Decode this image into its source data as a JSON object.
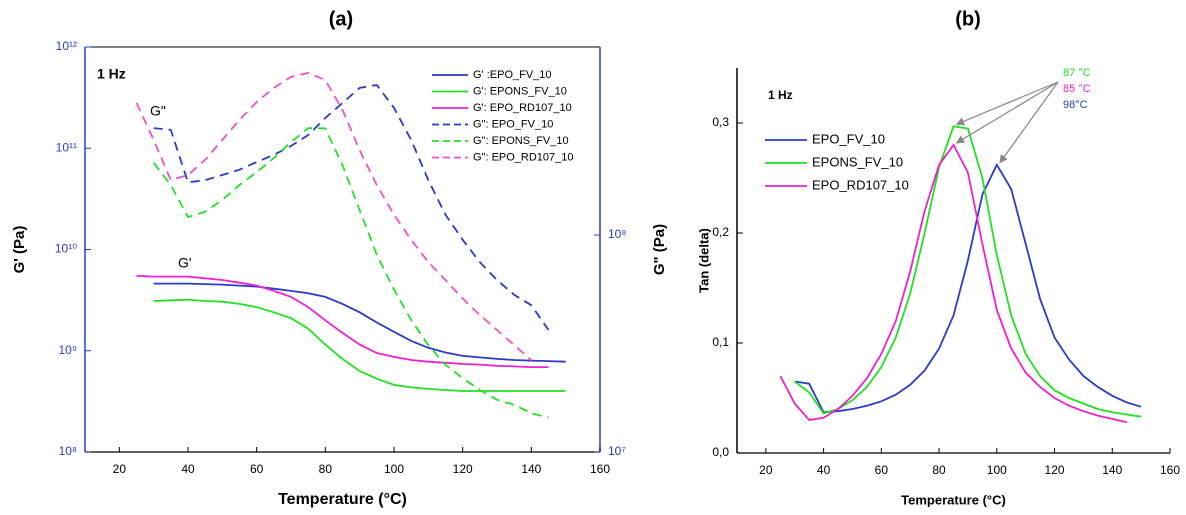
{
  "chart_data": [
    {
      "type": "line",
      "title": "(a)",
      "xlabel": "Temperature (°C)",
      "ylabel": "G' (Pa)",
      "y2label": "G\" (Pa)",
      "annotations": [
        "1 Hz",
        "G\"",
        "G'"
      ],
      "x": [
        25,
        30,
        35,
        40,
        45,
        50,
        55,
        60,
        65,
        70,
        75,
        80,
        85,
        90,
        95,
        100,
        105,
        110,
        115,
        120,
        125,
        130,
        135,
        140,
        145,
        150
      ],
      "xlim": [
        10,
        160
      ],
      "xticks": [
        20,
        40,
        60,
        80,
        100,
        120,
        140,
        160
      ],
      "ylog": true,
      "ylim": [
        100000000.0,
        1000000000000.0
      ],
      "yticks": [
        {
          "value": 100000000.0,
          "label": "10⁸"
        },
        {
          "value": 1000000000.0,
          "label": "10⁹"
        },
        {
          "value": 10000000000.0,
          "label": "10¹⁰"
        },
        {
          "value": 100000000000.0,
          "label": "10¹¹"
        },
        {
          "value": 1000000000000.0,
          "label": "10¹²"
        }
      ],
      "y2lim": [
        10000000.0,
        735000000.0
      ],
      "y2ticks": [
        {
          "value": 10000000.0,
          "label": "10⁷"
        },
        {
          "value": 100000000.0,
          "label": "10⁸"
        }
      ],
      "legend": "upper right",
      "series": [
        {
          "name": "G' :EPO_FV_10",
          "color": "#2a3bcc",
          "linestyle": "solid",
          "values": [
            null,
            4600000000.0,
            4600000000.0,
            4600000000.0,
            4550000000.0,
            4500000000.0,
            4400000000.0,
            4300000000.0,
            4100000000.0,
            3900000000.0,
            3700000000.0,
            3400000000.0,
            2900000000.0,
            2400000000.0,
            1900000000.0,
            1540000000.0,
            1250000000.0,
            1070000000.0,
            960000000.0,
            890000000.0,
            860000000.0,
            830000000.0,
            810000000.0,
            800000000.0,
            790000000.0,
            780000000.0
          ]
        },
        {
          "name": "G': EPONS_FV_10",
          "color": "#22e022",
          "linestyle": "solid",
          "values": [
            null,
            3100000000.0,
            3150000000.0,
            3200000000.0,
            3100000000.0,
            3050000000.0,
            2900000000.0,
            2700000000.0,
            2400000000.0,
            2100000000.0,
            1650000000.0,
            1150000000.0,
            830000000.0,
            630000000.0,
            530000000.0,
            460000000.0,
            435000000.0,
            420000000.0,
            410000000.0,
            400000000.0,
            400000000.0,
            400000000.0,
            400000000.0,
            400000000.0,
            400000000.0,
            400000000.0
          ]
        },
        {
          "name": "G': EPO_RD107_10",
          "color": "#f020d0",
          "linestyle": "solid",
          "values": [
            5500000000.0,
            5400000000.0,
            5400000000.0,
            5400000000.0,
            5200000000.0,
            5000000000.0,
            4700000000.0,
            4400000000.0,
            3900000000.0,
            3400000000.0,
            2700000000.0,
            2000000000.0,
            1500000000.0,
            1150000000.0,
            950000000.0,
            870000000.0,
            810000000.0,
            780000000.0,
            760000000.0,
            740000000.0,
            730000000.0,
            710000000.0,
            700000000.0,
            690000000.0,
            690000000.0,
            null
          ]
        },
        {
          "name": "G\": EPO_FV_10",
          "color": "#2a3bcc",
          "linestyle": "dashed",
          "axis": "y2",
          "values": [
            null,
            311000000.0,
            305000000.0,
            175000000.0,
            179000000.0,
            189000000.0,
            200000000.0,
            217000000.0,
            234000000.0,
            257000000.0,
            289000000.0,
            346000000.0,
            406000000.0,
            476000000.0,
            491000000.0,
            385000000.0,
            274000000.0,
            179000000.0,
            124000000.0,
            95000000.0,
            75000000.0,
            62000000.0,
            53000000.0,
            47500000.0,
            36500000.0,
            null
          ]
        },
        {
          "name": "G\": EPONS_FV_10",
          "color": "#22e022",
          "linestyle": "dashed",
          "axis": "y2",
          "values": [
            null,
            215000000.0,
            170000000.0,
            121000000.0,
            128000000.0,
            145000000.0,
            170000000.0,
            195000000.0,
            226000000.0,
            268000000.0,
            311000000.0,
            310000000.0,
            210000000.0,
            130000000.0,
            81000000.0,
            56000000.0,
            40600000.0,
            31100000.0,
            25200000.0,
            21900000.0,
            19300000.0,
            17400000.0,
            16500000.0,
            15100000.0,
            14400000.0,
            null
          ]
        },
        {
          "name": "G\": EPO_RD107_10",
          "color": "#f050c8",
          "linestyle": "dashed",
          "axis": "y2",
          "values": [
            406000000.0,
            274000000.0,
            179000000.0,
            189000000.0,
            222000000.0,
            274000000.0,
            339000000.0,
            410000000.0,
            476000000.0,
            535000000.0,
            558000000.0,
            518000000.0,
            377000000.0,
            246000000.0,
            170000000.0,
            124000000.0,
            95000000.0,
            75000000.0,
            62000000.0,
            51000000.0,
            42800000.0,
            36500000.0,
            31100000.0,
            26500000.0,
            null,
            null
          ]
        }
      ]
    },
    {
      "type": "line",
      "title": "(b)",
      "xlabel": "Temperature (°C)",
      "ylabel": "Tan (delta)",
      "annotations": [
        {
          "text": "1 Hz"
        },
        {
          "text": "87 °C",
          "color": "#22e022"
        },
        {
          "text": "85 °C",
          "color": "#f020d0"
        },
        {
          "text": "98°C",
          "color": "#2a3bcc"
        }
      ],
      "x": [
        25,
        30,
        35,
        40,
        45,
        50,
        55,
        60,
        65,
        70,
        75,
        80,
        85,
        90,
        95,
        100,
        105,
        110,
        115,
        120,
        125,
        130,
        135,
        140,
        145,
        150
      ],
      "xlim": [
        10,
        160
      ],
      "xticks": [
        20,
        40,
        60,
        80,
        100,
        120,
        140,
        160
      ],
      "ylim": [
        0,
        0.35
      ],
      "yticks": [
        {
          "value": 0,
          "label": "0,0"
        },
        {
          "value": 0.1,
          "label": "0,1"
        },
        {
          "value": 0.2,
          "label": "0,2"
        },
        {
          "value": 0.3,
          "label": "0,3"
        }
      ],
      "legend": "upper left",
      "series": [
        {
          "name": "EPO_FV_10",
          "color": "#2a3bcc",
          "linestyle": "solid",
          "values": [
            null,
            0.065,
            0.063,
            0.037,
            0.038,
            0.04,
            0.043,
            0.047,
            0.053,
            0.062,
            0.075,
            0.095,
            0.125,
            0.175,
            0.235,
            0.262,
            0.24,
            0.19,
            0.14,
            0.105,
            0.085,
            0.07,
            0.06,
            0.052,
            0.046,
            0.042
          ]
        },
        {
          "name": "EPONS_FV_10",
          "color": "#22e022",
          "linestyle": "solid",
          "values": [
            null,
            0.065,
            0.055,
            0.036,
            0.04,
            0.048,
            0.06,
            0.078,
            0.105,
            0.145,
            0.2,
            0.26,
            0.297,
            0.295,
            0.25,
            0.18,
            0.125,
            0.09,
            0.07,
            0.057,
            0.05,
            0.045,
            0.04,
            0.037,
            0.035,
            0.033
          ]
        },
        {
          "name": "EPO_RD107_10",
          "color": "#f020d0",
          "linestyle": "solid",
          "values": [
            0.07,
            0.045,
            0.03,
            0.032,
            0.04,
            0.052,
            0.068,
            0.09,
            0.12,
            0.165,
            0.22,
            0.262,
            0.28,
            0.255,
            0.19,
            0.13,
            0.095,
            0.073,
            0.06,
            0.05,
            0.043,
            0.038,
            0.034,
            0.031,
            0.028,
            null
          ]
        }
      ]
    }
  ]
}
